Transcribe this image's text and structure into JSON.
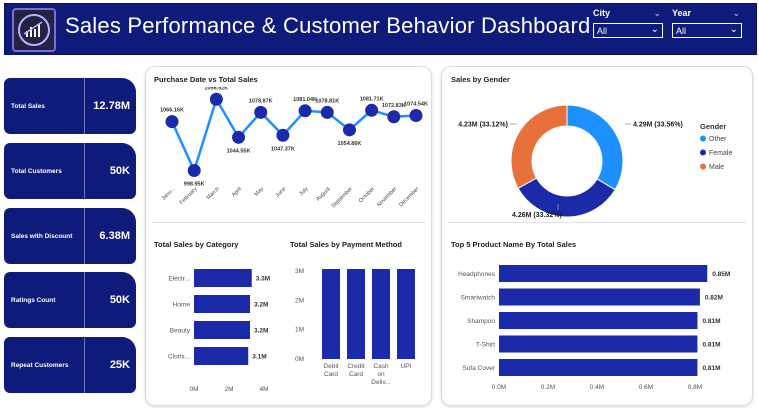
{
  "header": {
    "title": "Sales Performance & Customer Behavior Dashboard",
    "city": {
      "label": "City",
      "value": "All"
    },
    "year": {
      "label": "Year",
      "value": "All"
    }
  },
  "kpis": [
    {
      "label": "Total Sales",
      "value": "12.78M"
    },
    {
      "label": "Total Customers",
      "value": "50K"
    },
    {
      "label": "Sales with Discount",
      "value": "6.38M"
    },
    {
      "label": "Ratings Count",
      "value": "50K"
    },
    {
      "label": "Repeat Customers",
      "value": "25K"
    }
  ],
  "colors": {
    "navy": "#0f1b7a",
    "bar": "#1a2aa8",
    "line": "#1e90ff",
    "other": "#1e90ff",
    "female": "#1a2aa8",
    "male": "#e8703a"
  },
  "chart_data": [
    {
      "type": "line",
      "title": "Purchase Date vs Total Sales",
      "categories": [
        "Janu...",
        "February",
        "March",
        "April",
        "May",
        "June",
        "July",
        "August",
        "September",
        "October",
        "November",
        "December"
      ],
      "values": [
        1066.16,
        998.95,
        1096.92,
        1044.55,
        1078.87,
        1047.37,
        1081.04,
        1078.81,
        1054.86,
        1081.71,
        1072.83,
        1074.54
      ],
      "data_labels": [
        "1066.16K",
        "998.95K",
        "1096.92K",
        "1044.55K",
        "1078.87K",
        "1047.37K",
        "1081.04K",
        "1078.81K",
        "1054.86K",
        "1081.71K",
        "1072.83K",
        "1074.54K"
      ]
    },
    {
      "type": "pie",
      "title": "Sales by Gender",
      "legend_title": "Gender",
      "slices": [
        {
          "name": "Other",
          "value": 4.29,
          "label": "4.29M (33.56%)"
        },
        {
          "name": "Female",
          "value": 4.26,
          "label": "4.26M (33.32%)"
        },
        {
          "name": "Male",
          "value": 4.23,
          "label": "4.23M (33.12%)"
        }
      ]
    },
    {
      "type": "bar",
      "title": "Total Sales by Category",
      "categories": [
        "Electr...",
        "Home",
        "Beauty",
        "Clothi..."
      ],
      "values": [
        3.3,
        3.2,
        3.2,
        3.1
      ],
      "data_labels": [
        "3.3M",
        "3.2M",
        "3.2M",
        "3.1M"
      ],
      "xticks": [
        "0M",
        "2M",
        "4M"
      ],
      "xlim": [
        0,
        4
      ]
    },
    {
      "type": "bar",
      "title": "Total Sales by Payment  Method",
      "categories": [
        "Debit Card",
        "Credit Card",
        "Cash on Deliv...",
        "UPI"
      ],
      "values": [
        3.2,
        3.2,
        3.2,
        3.2
      ],
      "yticks": [
        "3M",
        "2M",
        "1M",
        "0M"
      ],
      "ylim": [
        0,
        3.2
      ]
    },
    {
      "type": "bar",
      "title": "Top 5 Product  Name By Total Sales",
      "categories": [
        "Headphones",
        "Smartwatch",
        "Shampoo",
        "T-Shirt",
        "Sofa Cover"
      ],
      "values": [
        0.85,
        0.82,
        0.81,
        0.81,
        0.81
      ],
      "data_labels": [
        "0.85M",
        "0.82M",
        "0.81M",
        "0.81M",
        "0.81M"
      ],
      "xticks": [
        "0.0M",
        "0.2M",
        "0.4M",
        "0.6M",
        "0.8M"
      ],
      "xlim": [
        0,
        0.8
      ]
    }
  ]
}
